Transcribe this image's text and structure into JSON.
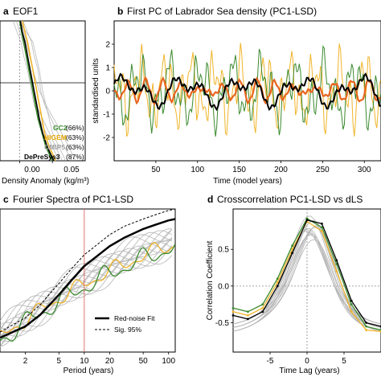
{
  "chart_data": [
    {
      "panel": "a",
      "title": "EOF1",
      "type": "line",
      "xlabel": "Density Anomaly (kg/m³)",
      "ylabel": "",
      "xlim": [
        -0.03,
        0.1
      ],
      "ylim": [
        0,
        1
      ],
      "xticks": [
        "0.00",
        "0.05"
      ],
      "legend_placement": "bottom-right",
      "legend": [
        {
          "name": "GC2",
          "pct": "(66%)",
          "color": "#3a8a2e"
        },
        {
          "name": "HIGEM",
          "pct": "(63%)",
          "color": "#f0b429"
        },
        {
          "name": "CMIP5",
          "pct": "(63%)",
          "color": "#a9a9a9"
        },
        {
          "name": "DePreSys3",
          "pct": "(87%)",
          "color": "#000000"
        }
      ],
      "depth": [
        0.0,
        0.08,
        0.15,
        0.25,
        0.35,
        0.5,
        0.6,
        0.7,
        0.8,
        0.9,
        1.0
      ],
      "series": [
        {
          "name": "GC2",
          "color": "#3a8a2e",
          "values": [
            0.0,
            0.003,
            0.006,
            0.01,
            0.014,
            0.02,
            0.024,
            0.028,
            0.034,
            0.04,
            0.05
          ]
        },
        {
          "name": "HIGEM",
          "color": "#f0b429",
          "values": [
            0.004,
            0.008,
            0.012,
            0.016,
            0.02,
            0.026,
            0.03,
            0.034,
            0.038,
            0.045,
            0.055
          ]
        },
        {
          "name": "DePreSys3",
          "color": "#000000",
          "values": [
            0.001,
            0.004,
            0.008,
            0.012,
            0.016,
            0.022,
            0.026,
            0.03,
            0.035,
            0.042,
            0.052
          ]
        }
      ],
      "cmip5_spread": [
        [
          0.0,
          0.01,
          0.02,
          0.025,
          0.03,
          0.035,
          0.04,
          0.045,
          0.05,
          0.06,
          0.07
        ],
        [
          -0.005,
          0.0,
          0.005,
          0.01,
          0.015,
          0.02,
          0.025,
          0.035,
          0.045,
          0.055,
          0.065
        ],
        [
          0.005,
          0.012,
          0.018,
          0.022,
          0.028,
          0.032,
          0.038,
          0.048,
          0.058,
          0.068,
          0.08
        ],
        [
          -0.01,
          -0.004,
          0.002,
          0.006,
          0.012,
          0.018,
          0.022,
          0.03,
          0.04,
          0.05,
          0.06
        ],
        [
          0.002,
          0.006,
          0.01,
          0.015,
          0.02,
          0.03,
          0.04,
          0.052,
          0.064,
          0.075,
          0.085
        ]
      ]
    },
    {
      "panel": "b",
      "title": "First PC of Labrador Sea density (PC1-LSD)",
      "type": "line",
      "xlabel": "Time (model years)",
      "ylabel": "standardised units",
      "xlim": [
        0,
        320
      ],
      "ylim": [
        -3,
        3
      ],
      "xticks": [
        50,
        100,
        150,
        200,
        250,
        300
      ],
      "yticks": [
        -2,
        -1,
        0,
        1,
        2
      ],
      "series": [
        {
          "name": "GC2",
          "color": "#3a8a2e"
        },
        {
          "name": "HIGEM",
          "color": "#f0b429"
        },
        {
          "name": "DePreSys3",
          "color": "#000000"
        },
        {
          "name": "",
          "color": "#e8651f"
        }
      ]
    },
    {
      "panel": "c",
      "title": "Fourier Spectra of PC1-LSD",
      "type": "line",
      "xscale": "log",
      "xlabel": "Period (years)",
      "xlim": [
        1,
        120
      ],
      "xticks": [
        2,
        5,
        10,
        20,
        50,
        100
      ],
      "period_marker": 10,
      "legend_placement": "bottom-right",
      "legend": [
        {
          "name": "Red-noise Fit",
          "style": "solid"
        },
        {
          "name": "Sig. 95%",
          "style": "dashed"
        }
      ],
      "series": [
        {
          "name": "Red-noise Fit",
          "color": "#000000",
          "x": [
            1,
            2,
            3,
            5,
            7,
            10,
            20,
            30,
            50,
            70,
            100,
            120
          ],
          "values": [
            0.1,
            0.18,
            0.26,
            0.4,
            0.5,
            0.6,
            0.74,
            0.8,
            0.86,
            0.89,
            0.92,
            0.93
          ]
        },
        {
          "name": "Sig. 95%",
          "color": "#000000",
          "x": [
            1,
            2,
            3,
            5,
            7,
            10,
            20,
            30,
            50,
            70,
            100,
            120
          ],
          "values": [
            0.14,
            0.24,
            0.33,
            0.48,
            0.58,
            0.68,
            0.82,
            0.88,
            0.93,
            0.96,
            0.99,
            1.0
          ]
        }
      ]
    },
    {
      "panel": "d",
      "title": "Crosscorrelation PC1-LSD vs dLS",
      "type": "line",
      "xlabel": "Time Lag (years)",
      "ylabel": "Correlation Coefficient",
      "xlim": [
        -10,
        10
      ],
      "ylim": [
        -0.9,
        1.05
      ],
      "xticks": [
        -5,
        0,
        5
      ],
      "yticks": [
        -0.5,
        0.0,
        0.5
      ],
      "lags": [
        -10,
        -8,
        -6,
        -4,
        -2,
        0,
        2,
        4,
        6,
        8,
        10
      ],
      "series": [
        {
          "name": "GC2",
          "color": "#3a8a2e",
          "values": [
            -0.3,
            -0.35,
            -0.25,
            0.1,
            0.55,
            0.92,
            0.8,
            0.3,
            -0.25,
            -0.55,
            -0.6
          ]
        },
        {
          "name": "HIGEM",
          "color": "#f0b429",
          "values": [
            -0.35,
            -0.4,
            -0.3,
            0.05,
            0.5,
            0.88,
            0.75,
            0.2,
            -0.35,
            -0.6,
            -0.62
          ]
        },
        {
          "name": "DePreSys3",
          "color": "#000000",
          "values": [
            -0.4,
            -0.45,
            -0.35,
            0.0,
            0.45,
            0.9,
            0.85,
            0.35,
            -0.2,
            -0.5,
            -0.55
          ]
        }
      ]
    }
  ]
}
